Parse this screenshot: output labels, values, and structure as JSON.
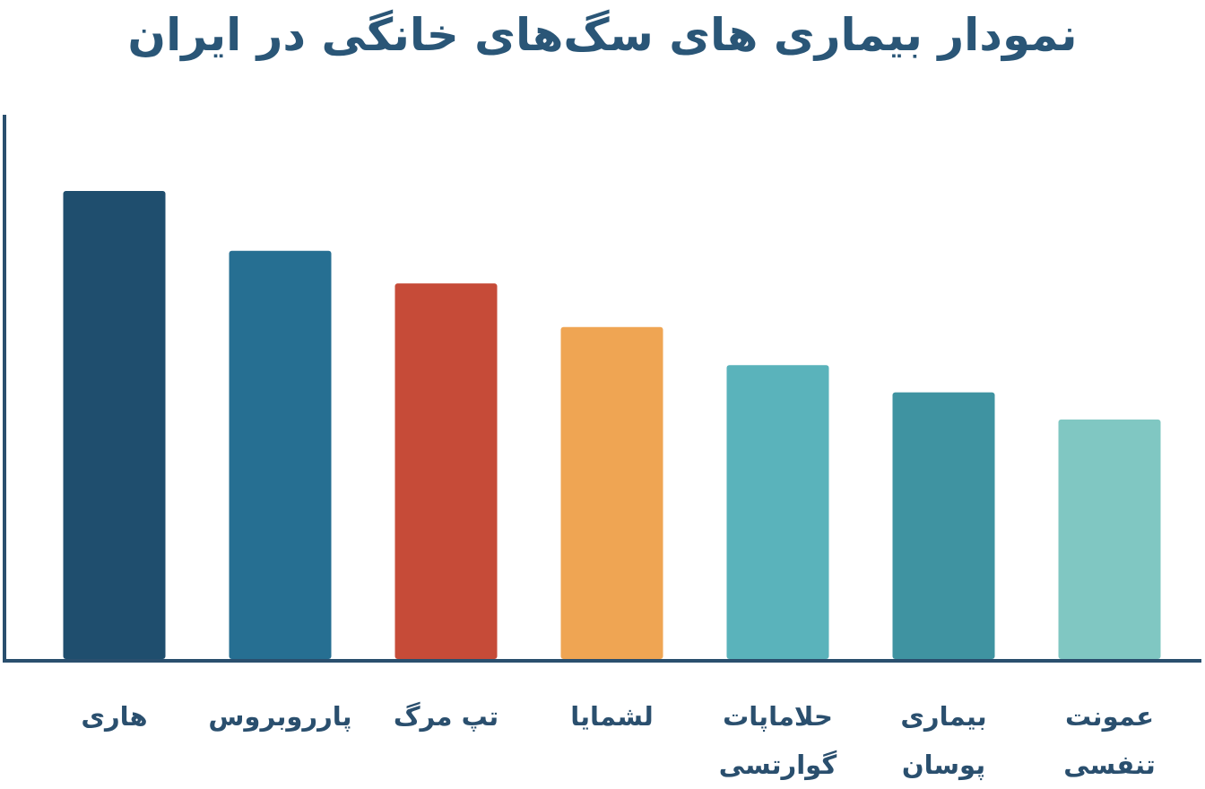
{
  "chart_data": {
    "type": "bar",
    "title": "نمودار بیماری های سگ‌های خانگی در ایران",
    "categories": [
      "هاری",
      "پارروبروس",
      "تپ مرگ",
      "لشمایا",
      "حلاماپات\nگوارتسی",
      "بیماری\nپوسان",
      "عمونت\nتنفسی"
    ],
    "values": [
      86,
      75,
      69,
      61,
      54,
      49,
      44
    ],
    "colors": [
      "#1f4e6e",
      "#266f92",
      "#c64b38",
      "#efa553",
      "#5ab3bb",
      "#3f93a1",
      "#80c7c2"
    ],
    "ylim": [
      0,
      100
    ]
  }
}
